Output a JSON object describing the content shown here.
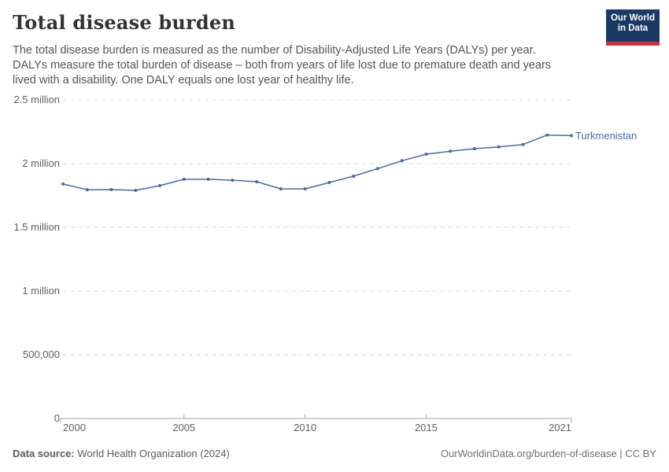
{
  "header": {
    "title": "Total disease burden",
    "subtitle_lines": [
      "The total disease burden is measured as the number of Disability-Adjusted Life Years (DALYs) per year.",
      "DALYs measure the total burden of disease – both from years of life lost due to premature death and years",
      "lived with a disability. One DALY equals one lost year of healthy life."
    ]
  },
  "logo": {
    "line1": "Our World",
    "line2": "in Data",
    "bg_color": "#1a3a64",
    "stripe_color": "#c5353c"
  },
  "chart_data": {
    "type": "line",
    "title": "Total disease burden",
    "x": [
      2000,
      2001,
      2002,
      2003,
      2004,
      2005,
      2006,
      2007,
      2008,
      2009,
      2010,
      2011,
      2012,
      2013,
      2014,
      2015,
      2016,
      2017,
      2018,
      2019,
      2020,
      2021
    ],
    "series": [
      {
        "name": "Turkmenistan",
        "color": "#4c6a9c",
        "values": [
          1840000,
          1795000,
          1796000,
          1790000,
          1827000,
          1877000,
          1877000,
          1870000,
          1858000,
          1802000,
          1802000,
          1852000,
          1901000,
          1961000,
          2023000,
          2074000,
          2097000,
          2117000,
          2131000,
          2150000,
          2224000,
          2220000
        ]
      }
    ],
    "ylabel": "",
    "xlabel": "",
    "ylim": [
      0,
      2500000
    ],
    "xlim": [
      2000,
      2021
    ],
    "grid": "horizontal-dashed",
    "legend_position": "end-of-line",
    "y_ticks": [
      {
        "value": 0,
        "label": "0"
      },
      {
        "value": 500000,
        "label": "500,000"
      },
      {
        "value": 1000000,
        "label": "1 million"
      },
      {
        "value": 1500000,
        "label": "1.5 million"
      },
      {
        "value": 2000000,
        "label": "2 million"
      },
      {
        "value": 2500000,
        "label": "2.5 million"
      }
    ],
    "x_ticks": [
      {
        "value": 2000,
        "label": "2000",
        "align": "left"
      },
      {
        "value": 2005,
        "label": "2005",
        "align": "center"
      },
      {
        "value": 2010,
        "label": "2010",
        "align": "center"
      },
      {
        "value": 2015,
        "label": "2015",
        "align": "center"
      },
      {
        "value": 2021,
        "label": "2021",
        "align": "right"
      }
    ],
    "colors": {
      "line": "#4c6a9c",
      "gridline": "#dcdcdc",
      "axis": "#a6a6a6"
    }
  },
  "footer": {
    "data_source_label": "Data source:",
    "data_source_value": "World Health Organization (2024)",
    "attribution": "OurWorldinData.org/burden-of-disease | CC BY"
  }
}
